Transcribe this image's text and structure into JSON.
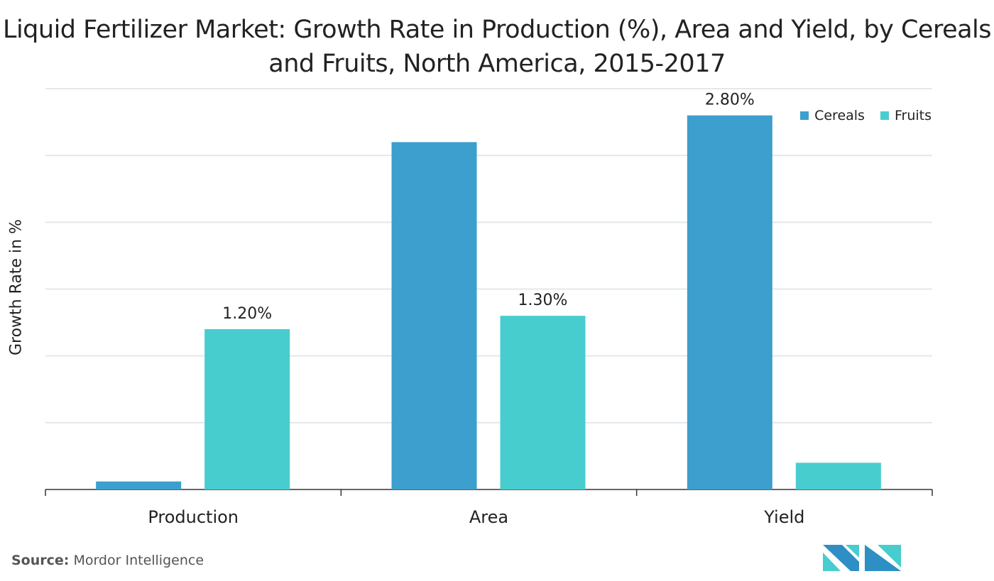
{
  "chart_data": {
    "type": "bar",
    "title": "Liquid Fertilizer Market: Growth Rate in Production (%), Area and Yield, by Cereals and Fruits, North America, 2015-2017",
    "xlabel": "",
    "ylabel": "Growth Rate in %",
    "categories": [
      "Production",
      "Area",
      "Yield"
    ],
    "series": [
      {
        "name": "Cereals",
        "color": "#3c9fce",
        "values": [
          0.06,
          2.6,
          2.8
        ],
        "labels": [
          "",
          "",
          "2.80%"
        ]
      },
      {
        "name": "Fruits",
        "color": "#48cdcf",
        "values": [
          1.2,
          1.3,
          0.2
        ],
        "labels": [
          "1.20%",
          "1.30%",
          ""
        ]
      }
    ],
    "ylim": [
      0,
      3.0
    ],
    "grid": true,
    "y_tick_labels_shown": false,
    "legend": "top-right"
  },
  "source": {
    "label": "Source:",
    "text": "Mordor Intelligence"
  },
  "logo": {
    "text": "MI",
    "colors": [
      "#2e8fc4",
      "#48cdcf"
    ]
  }
}
